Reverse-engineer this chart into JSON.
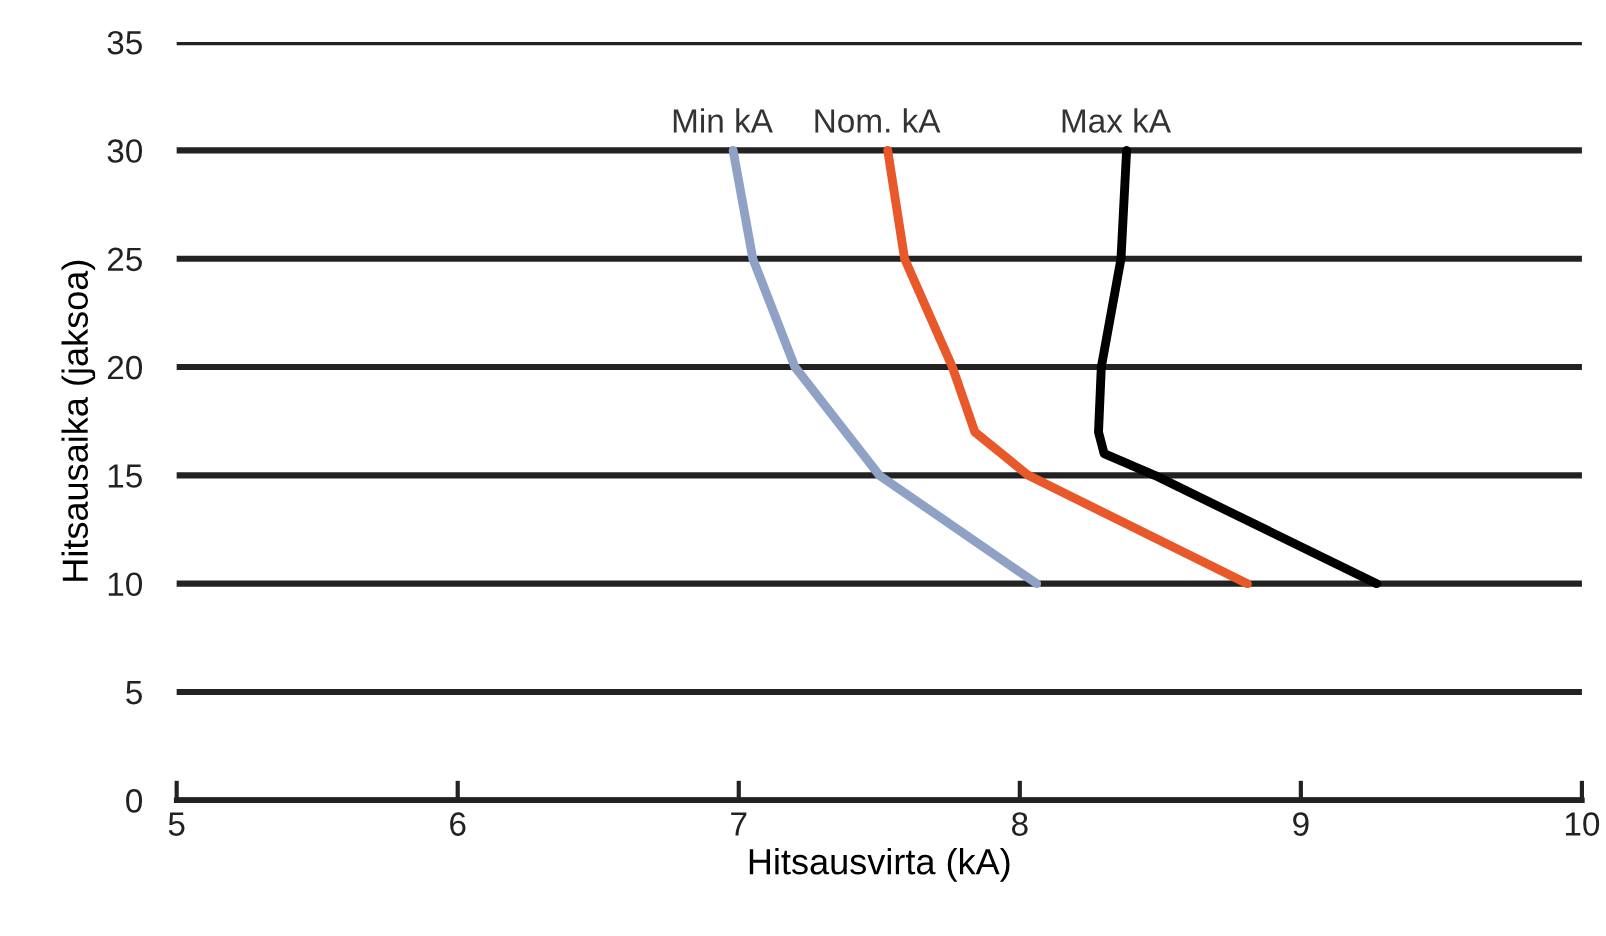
{
  "chart_data": {
    "type": "line",
    "xlabel": "Hitsausvirta (kA)",
    "ylabel": "Hitsausaika (jaksoa)",
    "xlim": [
      5,
      10
    ],
    "xticks": [
      5,
      6,
      7,
      8,
      9,
      10
    ],
    "ylim": [
      0,
      35
    ],
    "yticks": [
      0,
      5,
      10,
      15,
      20,
      25,
      30,
      35
    ],
    "grid": "y",
    "legend": false,
    "marker": "none",
    "line_style": "solid",
    "series": [
      {
        "name": "Min kA",
        "color": "#8fa2c6",
        "x": [
          8.06,
          7.5,
          7.2,
          7.05,
          6.98
        ],
        "values": [
          10,
          15,
          20,
          25,
          30
        ]
      },
      {
        "name": "Nom. kA",
        "color": "#e8582a",
        "x": [
          8.81,
          8.03,
          7.84,
          7.76,
          7.59,
          7.53
        ],
        "values": [
          10,
          15,
          17,
          20,
          25,
          30
        ]
      },
      {
        "name": "Max kA",
        "color": "#000000",
        "x": [
          9.27,
          8.48,
          8.3,
          8.28,
          8.29,
          8.36,
          8.38
        ],
        "values": [
          10,
          15,
          16,
          17,
          20,
          25,
          30
        ]
      }
    ]
  }
}
